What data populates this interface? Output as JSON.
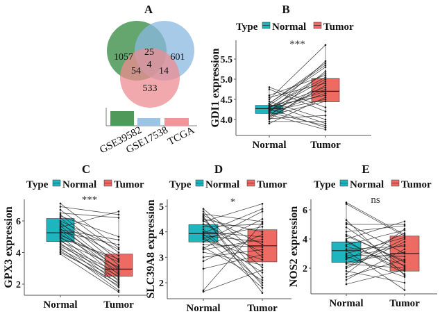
{
  "colors": {
    "normal": "#1fb5bf",
    "tumor": "#ee6b64",
    "venn_green": "#3e8f4a",
    "venn_blue": "#8ab8e0",
    "venn_red": "#ee8c92"
  },
  "panel_a": {
    "title": "A",
    "venn": {
      "only_gse39582": "1057",
      "only_gse17538": "601",
      "only_tcga": "533",
      "gse39582_gse17538": "25",
      "gse39582_tcga": "54",
      "gse17538_tcga": "14",
      "all_three": "4"
    },
    "bar_labels": [
      "GSE39582",
      "GSE17538",
      "TCGA"
    ]
  },
  "chart_data": [
    {
      "panel": "B",
      "type": "boxplot-paired",
      "title": "B",
      "ylabel": "GDI1 expression",
      "legend_title": "Type",
      "legend": [
        "Normal",
        "Tumor"
      ],
      "categories": [
        "Normal",
        "Tumor"
      ],
      "significance": "***",
      "yticks": [
        "4.0",
        "4.5",
        "5.0",
        "5.5"
      ],
      "box": {
        "Normal": {
          "q1": 4.15,
          "median": 4.27,
          "q3": 4.35
        },
        "Tumor": {
          "q1": 4.44,
          "median": 4.7,
          "q3": 5.02
        }
      },
      "normal": [
        4.8,
        4.75,
        4.6,
        4.55,
        4.5,
        4.45,
        4.4,
        4.38,
        4.35,
        4.33,
        4.3,
        4.28,
        4.27,
        4.25,
        4.23,
        4.2,
        4.18,
        4.15,
        4.12,
        4.1,
        4.08,
        4.05,
        4.02,
        4.0,
        3.95,
        3.9,
        4.3,
        4.22,
        4.17,
        4.4
      ],
      "tumor": [
        4.3,
        4.2,
        5.1,
        4.9,
        5.85,
        4.0,
        5.4,
        3.9,
        5.3,
        4.6,
        4.8,
        5.15,
        3.8,
        4.7,
        5.0,
        4.5,
        5.45,
        4.65,
        3.75,
        4.45,
        5.2,
        4.85,
        4.1,
        4.95,
        3.95,
        4.55,
        5.05,
        4.75,
        3.85,
        5.35
      ]
    },
    {
      "panel": "C",
      "type": "boxplot-paired",
      "title": "C",
      "ylabel": "GPX3 expression",
      "legend_title": "Type",
      "legend": [
        "Normal",
        "Tumor"
      ],
      "categories": [
        "Normal",
        "Tumor"
      ],
      "significance": "***",
      "yticks": [
        "2",
        "4",
        "6"
      ],
      "box": {
        "Normal": {
          "q1": 4.7,
          "median": 5.25,
          "q3": 6.15
        },
        "Tumor": {
          "q1": 2.5,
          "median": 2.95,
          "q3": 3.9
        }
      },
      "normal": [
        7.1,
        6.9,
        6.7,
        6.5,
        6.4,
        6.3,
        6.2,
        6.0,
        5.9,
        5.8,
        5.7,
        5.6,
        5.5,
        5.4,
        5.3,
        5.2,
        5.1,
        5.0,
        4.9,
        4.8,
        4.7,
        4.6,
        4.5,
        4.4,
        4.3,
        4.2,
        4.1,
        4.0,
        3.9,
        5.45
      ],
      "tumor": [
        4.3,
        6.4,
        4.0,
        6.2,
        3.5,
        5.0,
        3.2,
        4.2,
        2.9,
        3.8,
        2.6,
        6.6,
        3.0,
        2.4,
        4.5,
        2.8,
        3.4,
        2.2,
        3.6,
        2.0,
        3.1,
        1.8,
        2.7,
        2.5,
        1.6,
        2.3,
        1.9,
        2.1,
        1.5,
        4.8
      ]
    },
    {
      "panel": "D",
      "type": "boxplot-paired",
      "title": "D",
      "ylabel": "SLC39A8 expression",
      "legend_title": "Type",
      "legend": [
        "Normal",
        "Tumor"
      ],
      "categories": [
        "Normal",
        "Tumor"
      ],
      "significance": "*",
      "yticks": [
        "2",
        "3",
        "4",
        "5"
      ],
      "box": {
        "Normal": {
          "q1": 3.6,
          "median": 3.93,
          "q3": 4.28
        },
        "Tumor": {
          "q1": 2.82,
          "median": 3.45,
          "q3": 4.08
        }
      },
      "normal": [
        4.9,
        4.8,
        4.7,
        4.65,
        4.6,
        4.5,
        4.45,
        4.4,
        4.3,
        4.2,
        4.1,
        4.0,
        3.95,
        3.9,
        3.85,
        3.8,
        3.75,
        3.7,
        3.6,
        3.5,
        3.4,
        3.35,
        3.2,
        3.0,
        2.85,
        2.55,
        1.7,
        1.65,
        4.55,
        3.3
      ],
      "tumor": [
        3.0,
        2.2,
        4.4,
        3.5,
        1.6,
        4.0,
        2.6,
        5.1,
        3.2,
        4.3,
        2.0,
        3.8,
        4.9,
        2.4,
        3.6,
        1.8,
        4.2,
        2.9,
        4.8,
        3.4,
        2.1,
        4.5,
        2.7,
        3.3,
        3.9,
        3.1,
        4.35,
        2.5,
        1.9,
        3.7
      ]
    },
    {
      "panel": "E",
      "type": "boxplot-paired",
      "title": "E",
      "ylabel": "NOS2 expression",
      "legend_title": "Type",
      "legend": [
        "Normal",
        "Tumor"
      ],
      "categories": [
        "Normal",
        "Tumor"
      ],
      "significance": "ns",
      "yticks": [
        "2",
        "4",
        "6"
      ],
      "box": {
        "Normal": {
          "q1": 2.4,
          "median": 3.2,
          "q3": 3.8
        },
        "Tumor": {
          "q1": 1.8,
          "median": 3.0,
          "q3": 4.2
        }
      },
      "normal": [
        6.5,
        6.4,
        5.3,
        5.1,
        5.0,
        4.8,
        4.5,
        4.2,
        4.0,
        3.8,
        3.6,
        3.5,
        3.3,
        3.2,
        3.0,
        2.9,
        2.8,
        2.6,
        2.4,
        2.3,
        2.1,
        2.0,
        1.8,
        1.6,
        1.4,
        1.2,
        0.9,
        3.9,
        2.7,
        4.3
      ],
      "tumor": [
        4.3,
        4.2,
        1.5,
        3.0,
        5.0,
        2.1,
        4.9,
        2.5,
        5.2,
        1.8,
        4.6,
        2.2,
        3.5,
        0.5,
        4.1,
        2.8,
        1.4,
        4.4,
        3.1,
        2.0,
        4.0,
        3.8,
        1.0,
        4.7,
        2.6,
        3.3,
        1.9,
        1.6,
        3.6,
        2.4
      ]
    }
  ]
}
